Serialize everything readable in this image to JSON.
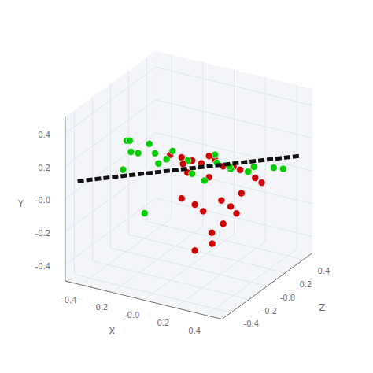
{
  "chart_data": {
    "type": "scatter3d",
    "xlabel": "X",
    "ylabel": "Y",
    "zlabel": "Z",
    "xlim": [
      -0.5,
      0.5
    ],
    "ylim": [
      -0.5,
      0.5
    ],
    "zlim": [
      -0.5,
      0.5
    ],
    "xticks": [
      -0.4,
      -0.2,
      {
        "value": 0,
        "label": "-0.0"
      },
      0.2,
      0.4
    ],
    "yticks": [
      -0.4,
      -0.2,
      {
        "value": 0,
        "label": "-0.0"
      },
      0.2,
      0.4
    ],
    "zticks": [
      -0.4,
      -0.2,
      {
        "value": 0,
        "label": "-0.0"
      },
      0.2,
      0.4
    ],
    "grid": true,
    "series": [
      {
        "type": "scatter",
        "color": "#00cc00",
        "values": [
          [
            -0.05,
            0.38,
            -0.35
          ],
          [
            0.1,
            0.35,
            -0.42
          ],
          [
            -0.25,
            0.3,
            -0.22
          ],
          [
            -0.15,
            0.28,
            -0.3
          ],
          [
            -0.1,
            0.25,
            -0.2
          ],
          [
            -0.05,
            0.22,
            -0.25
          ],
          [
            0.0,
            0.28,
            -0.18
          ],
          [
            0.05,
            0.2,
            -0.1
          ],
          [
            -0.2,
            0.2,
            -0.38
          ],
          [
            -0.3,
            0.18,
            -0.12
          ],
          [
            -0.35,
            0.22,
            -0.08
          ],
          [
            0.15,
            0.15,
            0.05
          ],
          [
            0.2,
            0.12,
            0.1
          ],
          [
            0.3,
            0.1,
            0.2
          ],
          [
            0.38,
            0.08,
            0.28
          ],
          [
            0.4,
            0.05,
            0.35
          ],
          [
            0.1,
            0.05,
            0.0
          ],
          [
            -0.08,
            -0.05,
            -0.35
          ],
          [
            0.05,
            0.1,
            -0.05
          ],
          [
            0.18,
            0.08,
            0.15
          ],
          [
            0.25,
            0.05,
            0.22
          ],
          [
            0.12,
            0.18,
            0.08
          ]
        ]
      },
      {
        "type": "scatter",
        "color": "#cc0000",
        "values": [
          [
            -0.05,
            0.22,
            -0.12
          ],
          [
            0.0,
            0.2,
            -0.08
          ],
          [
            0.05,
            0.18,
            -0.05
          ],
          [
            0.08,
            0.15,
            0.0
          ],
          [
            0.1,
            0.18,
            0.05
          ],
          [
            0.12,
            0.15,
            0.08
          ],
          [
            0.05,
            0.2,
            -0.15
          ],
          [
            0.15,
            0.1,
            0.12
          ],
          [
            0.18,
            0.08,
            0.18
          ],
          [
            0.2,
            0.05,
            0.22
          ],
          [
            0.22,
            0.02,
            0.28
          ],
          [
            0.25,
            -0.02,
            0.3
          ],
          [
            0.28,
            -0.05,
            0.32
          ],
          [
            0.15,
            -0.1,
            0.1
          ],
          [
            0.18,
            -0.15,
            0.15
          ],
          [
            0.2,
            -0.2,
            0.18
          ],
          [
            0.15,
            -0.25,
            0.12
          ],
          [
            0.1,
            -0.3,
            0.08
          ],
          [
            0.12,
            -0.35,
            0.05
          ],
          [
            0.05,
            -0.38,
            -0.02
          ],
          [
            0.0,
            -0.05,
            -0.08
          ],
          [
            0.05,
            -0.1,
            -0.02
          ],
          [
            0.08,
            -0.15,
            0.02
          ],
          [
            0.1,
            0.05,
            0.05
          ],
          [
            0.02,
            0.1,
            -0.05
          ],
          [
            0.22,
            -0.08,
            0.2
          ]
        ]
      },
      {
        "type": "line",
        "line_style": "dashed",
        "color": "#111111",
        "values": [
          [
            -0.45,
            0.1,
            -0.45
          ],
          [
            0.45,
            0.1,
            0.45
          ]
        ]
      }
    ]
  }
}
